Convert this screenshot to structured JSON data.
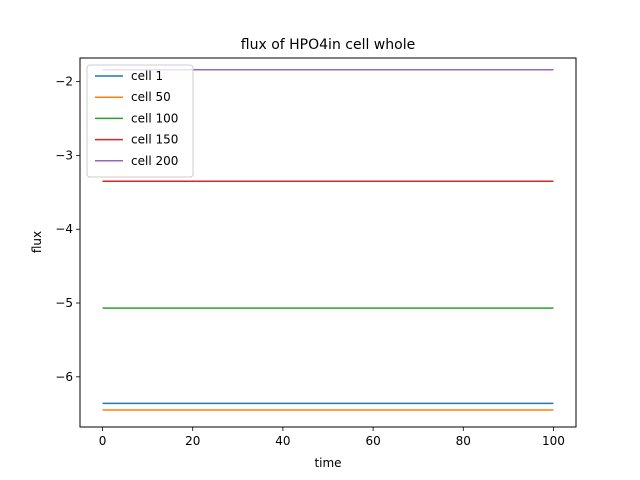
{
  "chart_data": {
    "type": "line",
    "title": "flux of HPO4in cell whole",
    "xlabel": "time",
    "ylabel": "flux",
    "xlim": [
      -5,
      105
    ],
    "ylim": [
      -6.68,
      -1.68
    ],
    "x_ticks": [
      0,
      20,
      40,
      60,
      80,
      100
    ],
    "y_ticks": [
      -6,
      -5,
      -4,
      -3,
      -2
    ],
    "x_tick_labels": [
      "0",
      "20",
      "40",
      "60",
      "80",
      "100"
    ],
    "y_tick_labels": [
      "−6",
      "−5",
      "−4",
      "−3",
      "−2"
    ],
    "legend_position": "upper-left",
    "grid": false,
    "series": [
      {
        "name": "cell 1",
        "color": "#1f77b4",
        "x": [
          0,
          100
        ],
        "y": [
          -6.36,
          -6.36
        ]
      },
      {
        "name": "cell 50",
        "color": "#ff7f0e",
        "x": [
          0,
          100
        ],
        "y": [
          -6.45,
          -6.45
        ]
      },
      {
        "name": "cell 100",
        "color": "#2ca02c",
        "x": [
          0,
          100
        ],
        "y": [
          -5.07,
          -5.07
        ]
      },
      {
        "name": "cell 150",
        "color": "#d62728",
        "x": [
          0,
          100
        ],
        "y": [
          -3.35,
          -3.35
        ]
      },
      {
        "name": "cell 200",
        "color": "#9467bd",
        "x": [
          0,
          100
        ],
        "y": [
          -1.84,
          -1.84
        ]
      }
    ]
  }
}
